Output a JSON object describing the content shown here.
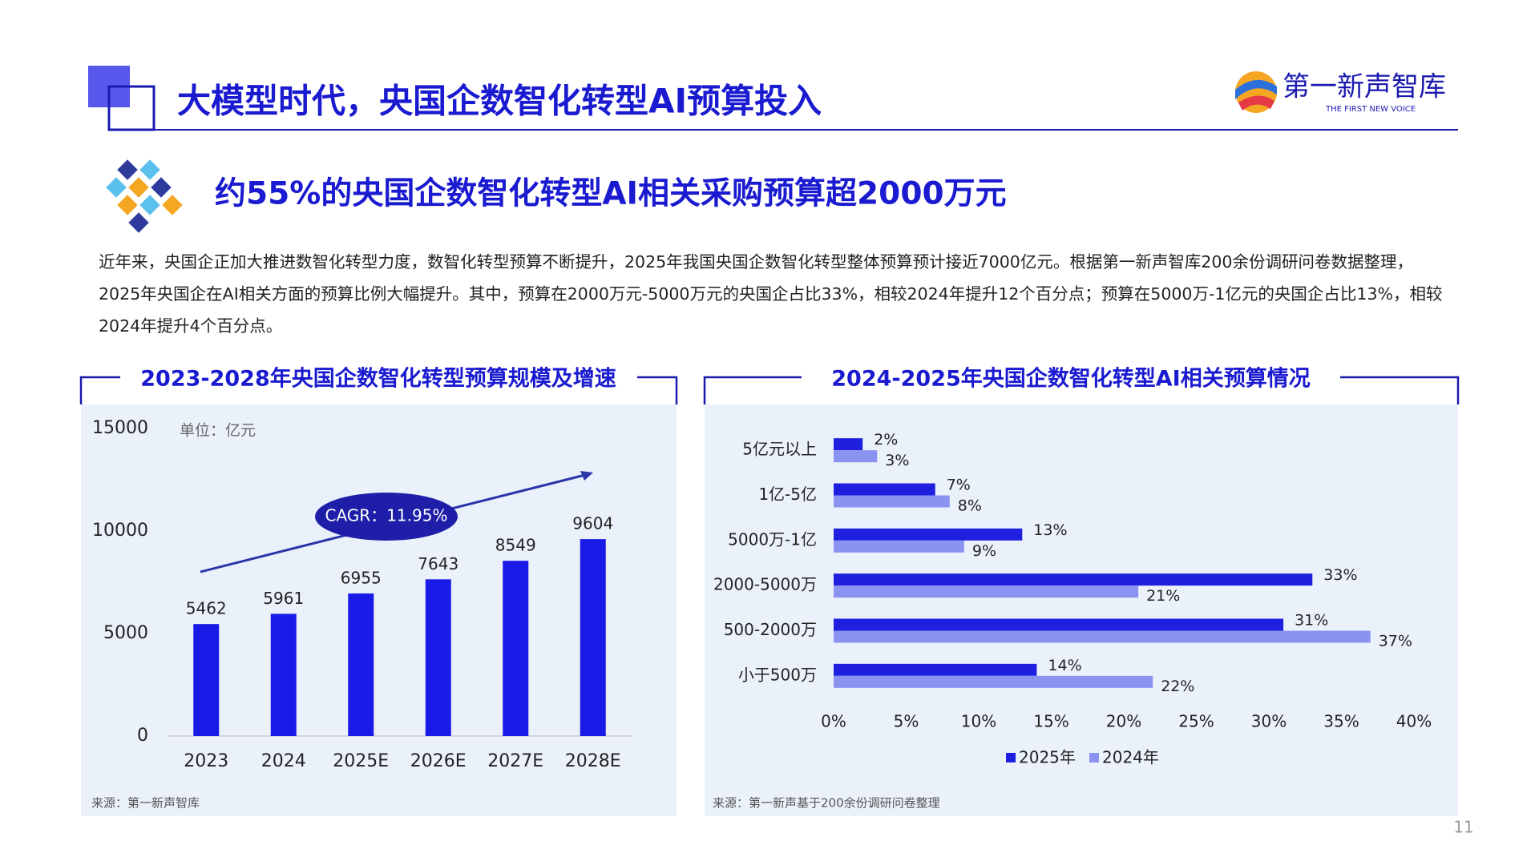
{
  "title": "大模型时代，央国企数智化转型AI预算投入",
  "logo": {
    "name": "第一新声智库",
    "tagline": "THE FIRST NEW VOICE"
  },
  "headline": "约55%的央国企数智化转型AI相关采购预算超2000万元",
  "paragraph": "近年来，央国企正加大推进数智化转型力度，数智化转型预算不断提升，2025年我国央国企数智化转型整体预算预计接近7000亿元。根据第一新声智库200余份调研问卷数据整理，2025年央国企在AI相关方面的预算比例大幅提升。其中，预算在2000万元-5000万元的央国企占比33%，相较2024年提升12个百分点；预算在5000万-1亿元的央国企占比13%，相较2024年提升4个百分点。",
  "page_number": "11",
  "chart_data": [
    {
      "type": "bar",
      "title": "2023-2028年央国企数智化转型预算规模及增速",
      "unit_label": "单位：亿元",
      "annotation": "CAGR：11.95%",
      "categories": [
        "2023",
        "2024",
        "2025E",
        "2026E",
        "2027E",
        "2028E"
      ],
      "values": [
        5462,
        5961,
        6955,
        7643,
        8549,
        9604
      ],
      "color": "#1a1ae6",
      "ylim": [
        0,
        15000
      ],
      "yticks": [
        0,
        5000,
        10000,
        15000
      ],
      "source": "来源：第一新声智库"
    },
    {
      "type": "hbar",
      "title": "2024-2025年央国企数智化转型AI相关预算情况",
      "categories": [
        "5亿元以上",
        "1亿-5亿",
        "5000万-1亿",
        "2000-5000万",
        "500-2000万",
        "小于500万"
      ],
      "series": [
        {
          "name": "2025年",
          "color": "#1f1fe0",
          "values": [
            2,
            7,
            13,
            33,
            31,
            14
          ],
          "value_labels": [
            "2%",
            "7%",
            "13%",
            "33%",
            "31%",
            "14%"
          ]
        },
        {
          "name": "2024年",
          "color": "#8b93f0",
          "values": [
            3,
            8,
            9,
            21,
            37,
            22
          ],
          "value_labels": [
            "3%",
            "8%",
            "9%",
            "21%",
            "37%",
            "22%"
          ]
        }
      ],
      "xlim": [
        0,
        40
      ],
      "xticks": [
        {
          "value": 0,
          "label": "0%"
        },
        {
          "value": 5,
          "label": "5%"
        },
        {
          "value": 10,
          "label": "10%"
        },
        {
          "value": 15,
          "label": "15%"
        },
        {
          "value": 20,
          "label": "20%"
        },
        {
          "value": 25,
          "label": "25%"
        },
        {
          "value": 30,
          "label": "30%"
        },
        {
          "value": 35,
          "label": "35%"
        },
        {
          "value": 40,
          "label": "40%"
        }
      ],
      "legend": "bottom",
      "source": "来源：第一新声基于200余份调研问卷整理"
    }
  ]
}
